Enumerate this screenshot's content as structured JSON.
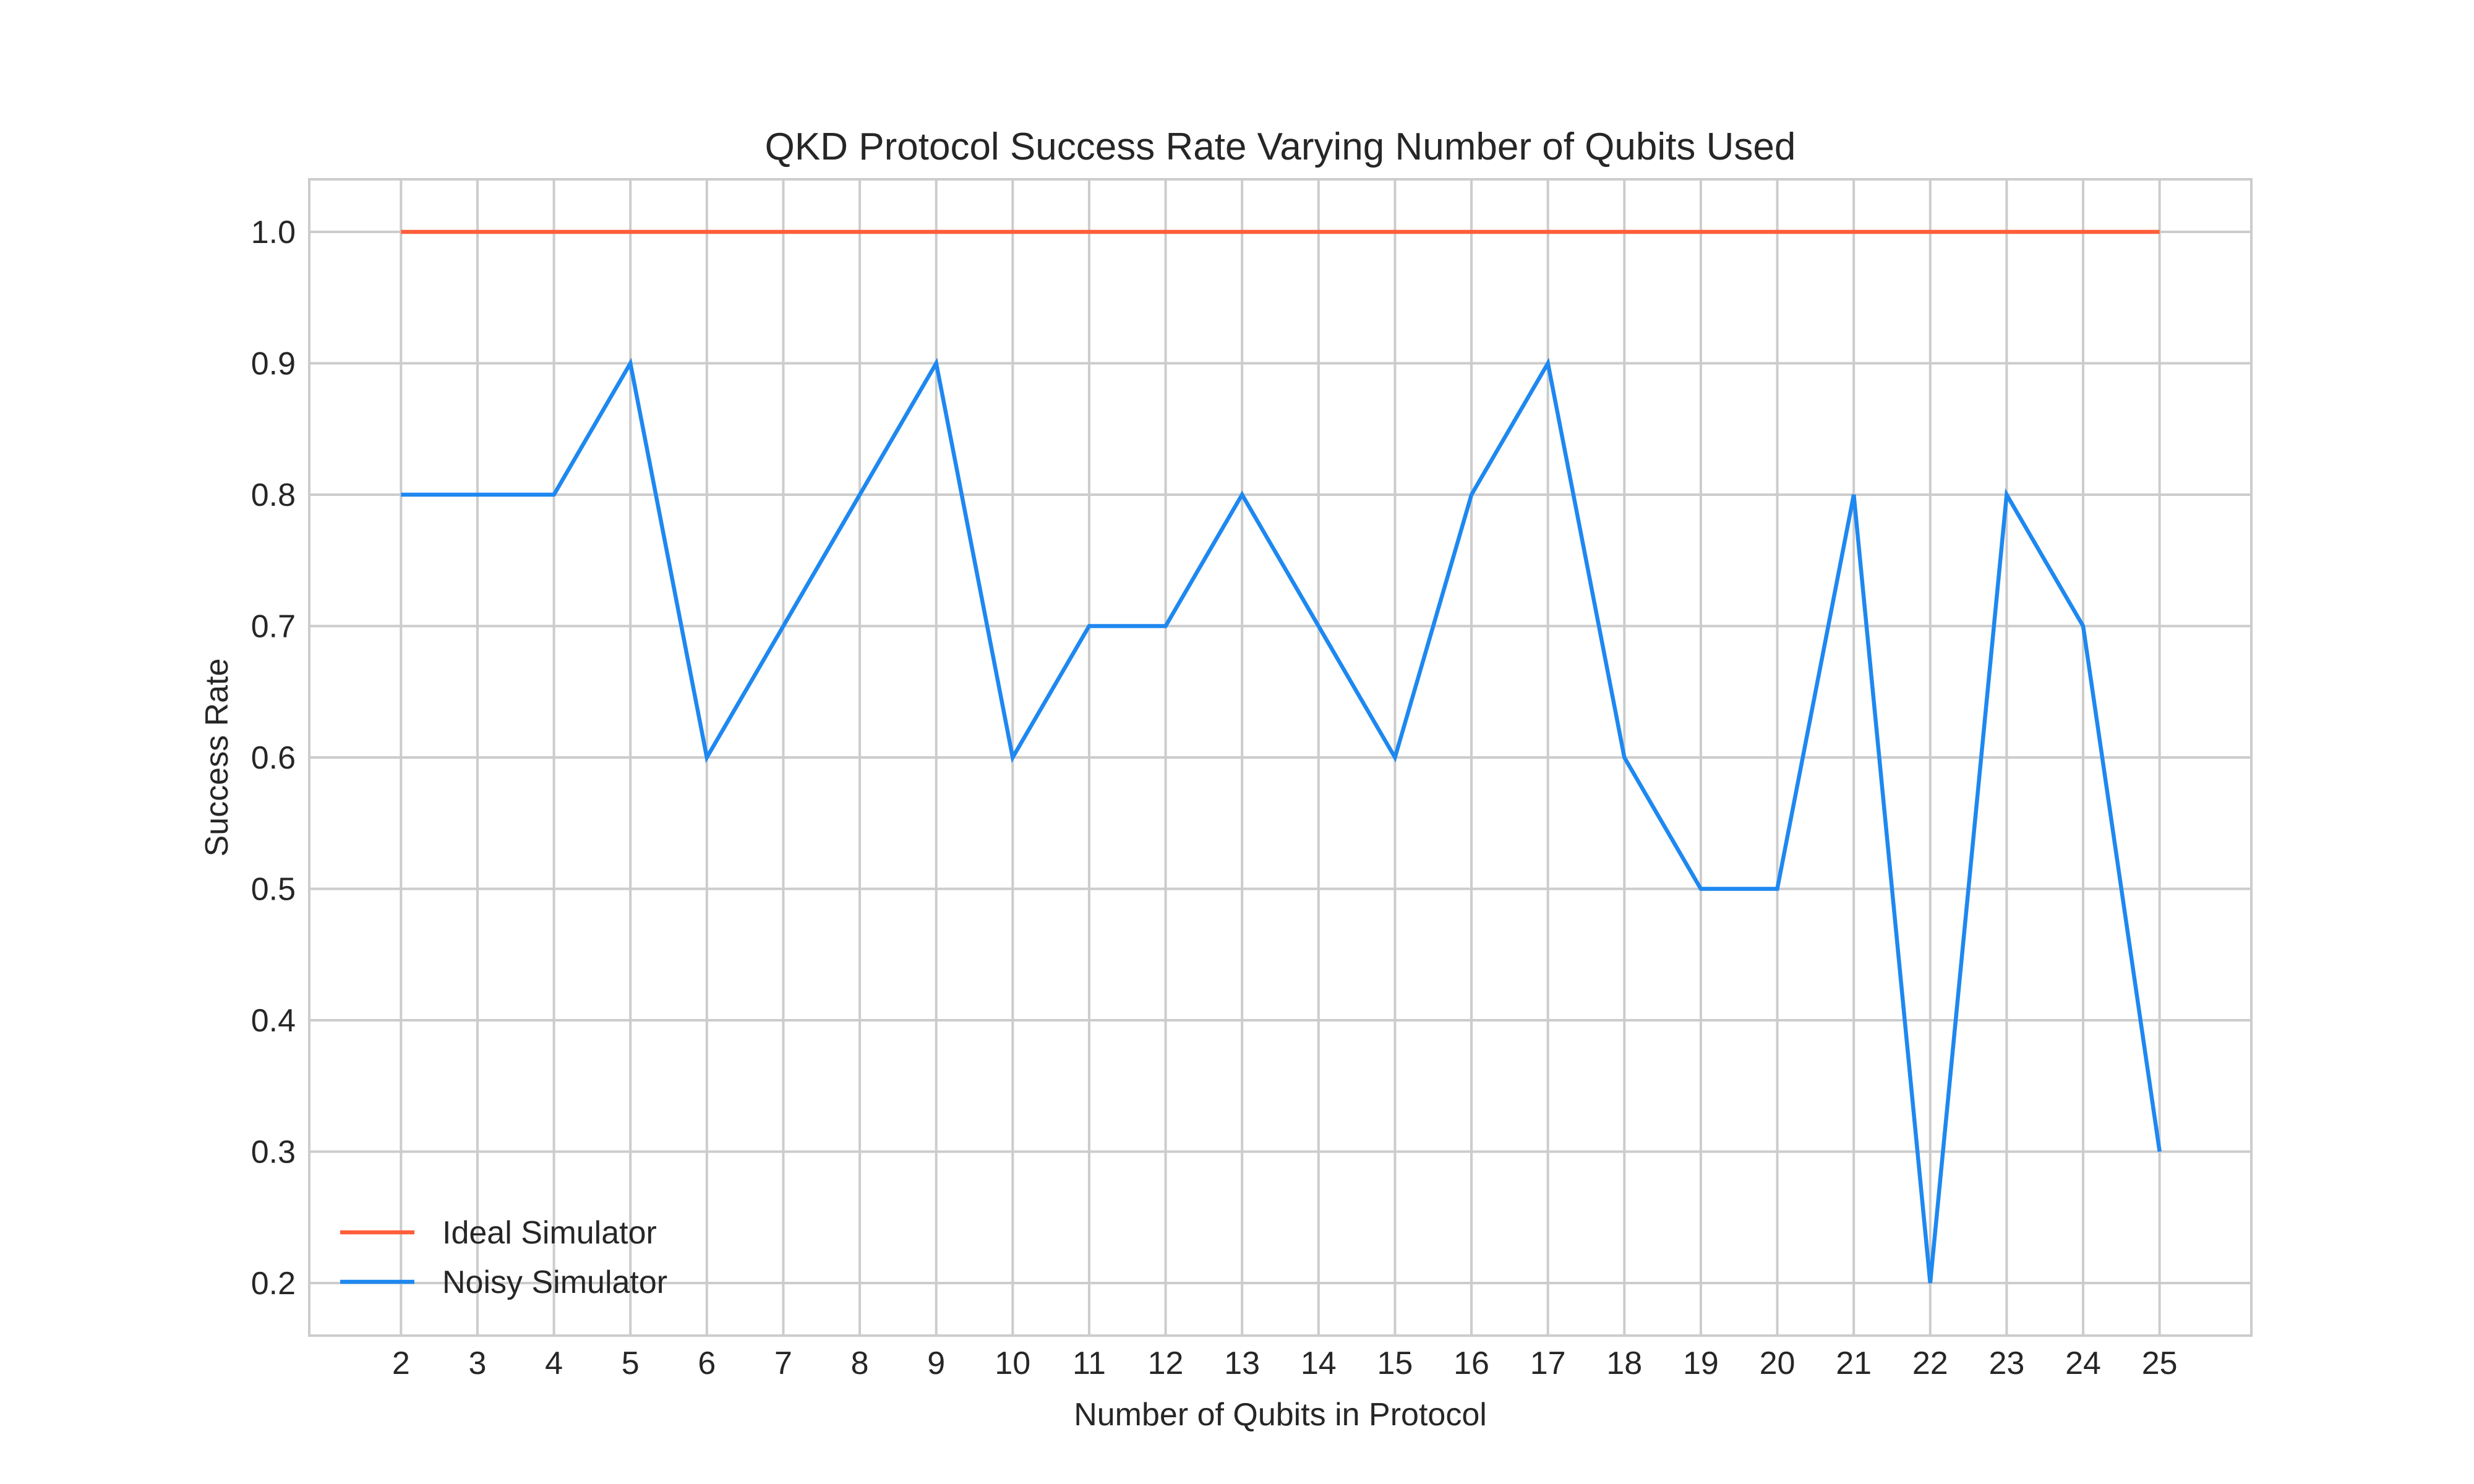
{
  "chart_data": {
    "type": "line",
    "title": "QKD Protocol Success Rate Varying Number of Qubits Used",
    "xlabel": "Number of Qubits in Protocol",
    "ylabel": "Success Rate",
    "x": [
      2,
      3,
      4,
      5,
      6,
      7,
      8,
      9,
      10,
      11,
      12,
      13,
      14,
      15,
      16,
      17,
      18,
      19,
      20,
      21,
      22,
      23,
      24,
      25
    ],
    "xticks": [
      "2",
      "3",
      "4",
      "5",
      "6",
      "7",
      "8",
      "9",
      "10",
      "11",
      "12",
      "13",
      "14",
      "15",
      "16",
      "17",
      "18",
      "19",
      "20",
      "21",
      "22",
      "23",
      "24",
      "25"
    ],
    "yticks": [
      "0.2",
      "0.3",
      "0.4",
      "0.5",
      "0.6",
      "0.7",
      "0.8",
      "0.9",
      "1.0"
    ],
    "xlim": [
      0.8,
      26.2
    ],
    "ylim": [
      0.16,
      1.04
    ],
    "grid": true,
    "legend_position": "bottom-left",
    "series": [
      {
        "name": "Ideal Simulator",
        "color": "#ff5e3a",
        "values": [
          1.0,
          1.0,
          1.0,
          1.0,
          1.0,
          1.0,
          1.0,
          1.0,
          1.0,
          1.0,
          1.0,
          1.0,
          1.0,
          1.0,
          1.0,
          1.0,
          1.0,
          1.0,
          1.0,
          1.0,
          1.0,
          1.0,
          1.0,
          1.0
        ]
      },
      {
        "name": "Noisy Simulator",
        "color": "#1e88f0",
        "values": [
          0.8,
          0.8,
          0.8,
          0.9,
          0.6,
          0.7,
          0.8,
          0.9,
          0.6,
          0.7,
          0.7,
          0.8,
          0.7,
          0.6,
          0.8,
          0.9,
          0.6,
          0.5,
          0.5,
          0.8,
          0.2,
          0.8,
          0.7,
          0.3
        ]
      }
    ]
  }
}
